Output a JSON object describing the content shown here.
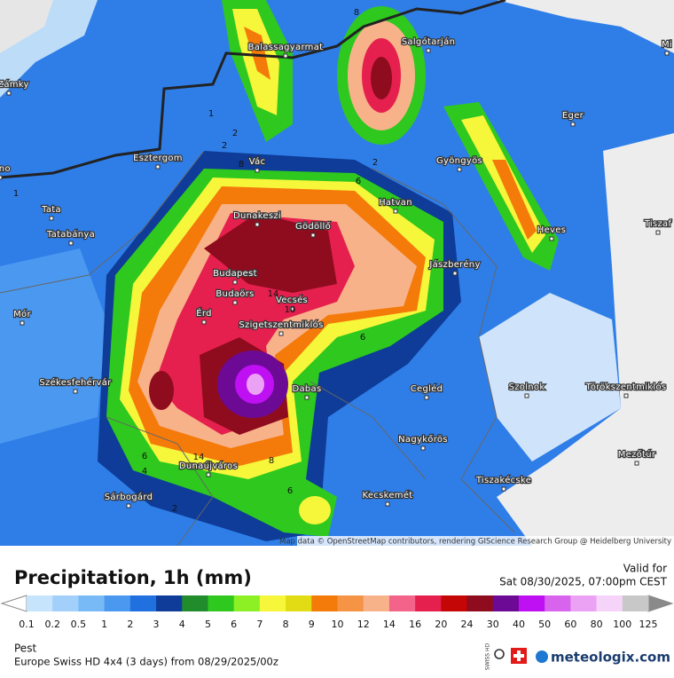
{
  "header": {
    "title": "Precipitation, 1h (mm)",
    "valid_label": "Valid for",
    "valid_time": "Sat 08/30/2025, 07:00pm CEST"
  },
  "map": {
    "attribution": "Map data © OpenStreetMap contributors, rendering GIScience Research Group @ Heidelberg University",
    "places": [
      "é Zámky",
      "árno",
      "Esztergom",
      "Tata",
      "Tatabánya",
      "Mór",
      "Székesfehérvár",
      "Sárbogárd",
      "Dunaújváros",
      "Érd",
      "Budaörs",
      "Budapest",
      "Dunakeszi",
      "Gödöllő",
      "Vác",
      "Balassagyarmat",
      "Salgótarján",
      "Eger",
      "Gyöngyös",
      "Hatvan",
      "Heves",
      "Tiszaf",
      "Jászberény",
      "Vecsés",
      "Szigetszentmiklós",
      "Dabas",
      "Cegléd",
      "Szolnok",
      "Törökszentmiklós",
      "Nagykőrös",
      "Mezőtúr",
      "Tiszakécske",
      "Kecskemét",
      "Mi"
    ],
    "contour_labels": [
      "8",
      "1",
      "2",
      "2",
      "8",
      "2",
      "6",
      "1",
      "14",
      "10",
      "6",
      "6",
      "14",
      "8",
      "4",
      "6",
      "2"
    ]
  },
  "legend": {
    "labels": [
      "0.1",
      "0.2",
      "0.5",
      "1",
      "2",
      "3",
      "4",
      "5",
      "6",
      "7",
      "8",
      "9",
      "10",
      "12",
      "14",
      "16",
      "20",
      "24",
      "30",
      "40",
      "50",
      "60",
      "80",
      "100",
      "125"
    ],
    "colors": [
      "#c6e4fb",
      "#a2d0fa",
      "#78baf6",
      "#4a98f0",
      "#2070e0",
      "#0e3c98",
      "#208c2c",
      "#2ec81e",
      "#8cf024",
      "#f6f63a",
      "#e2dc14",
      "#f47a0a",
      "#f69446",
      "#f8b28a",
      "#f4648a",
      "#e6204e",
      "#c40606",
      "#8e0c1e",
      "#6c0a96",
      "#be10f2",
      "#d864ee",
      "#eca2f4",
      "#f6d4fa",
      "#c8c8c8"
    ],
    "low_color": "#ffffff",
    "high_color": "#8a8a8a"
  },
  "footer": {
    "region": "Pest",
    "model": "Europe Swiss HD 4x4 (3 days) from 08/29/2025/00z",
    "badge": "SWISS HD",
    "brand": "meteologix.com"
  }
}
